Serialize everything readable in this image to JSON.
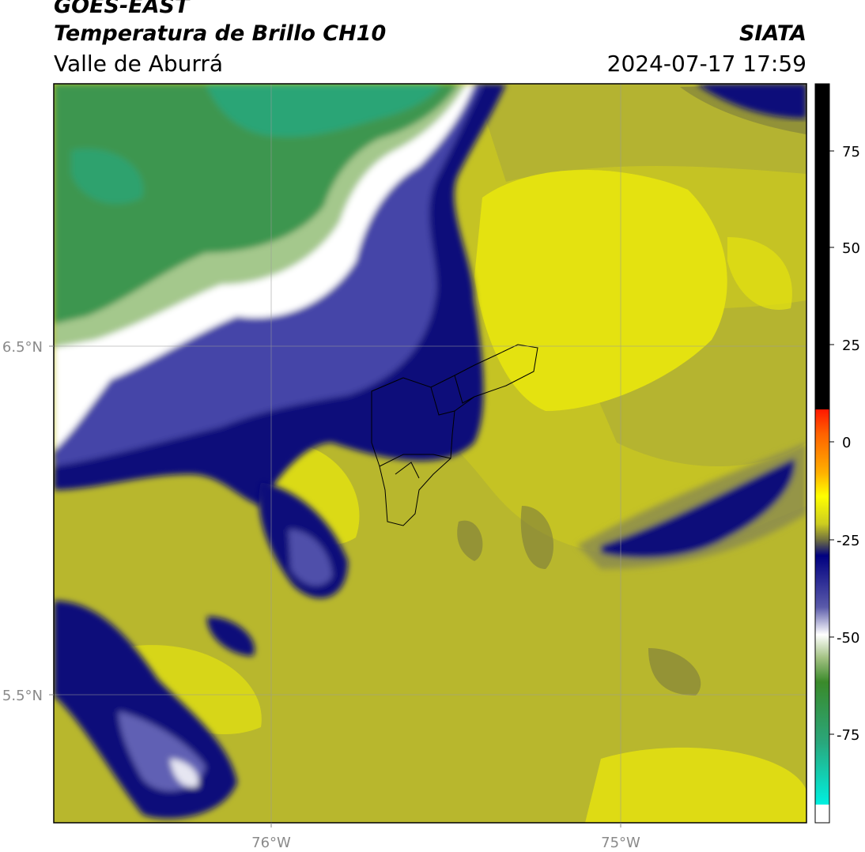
{
  "header": {
    "satellite": "GOES-EAST",
    "product": "Temperatura de Brillo CH10",
    "region": "Valle de Aburrá",
    "agency": "SIATA",
    "timestamp": "2024-07-17 17:59"
  },
  "map": {
    "lat_ticks": [
      "6.5°N",
      "5.5°N"
    ],
    "lon_ticks": [
      "76°W",
      "75°W"
    ],
    "feature_colors": {
      "warm_yellow": "#e2e010",
      "olive": "#a8a83a",
      "dark_olive": "#77773e",
      "navy": "#10107a",
      "blue_purple": "#4040a0",
      "white": "#ffffff",
      "light_green": "#a4c88c",
      "green": "#3c9650",
      "teal": "#2aa67a",
      "boundary": "#000000"
    }
  },
  "colorbar": {
    "ticks": [
      "75",
      "50",
      "25",
      "0",
      "-25",
      "-50",
      "-75"
    ],
    "colors": [
      "#000000",
      "#ff2000",
      "#ff8000",
      "#ffe000",
      "#e8ea00",
      "#707040",
      "#000080",
      "#4040a0",
      "#ffffff",
      "#408a28",
      "#2aa67a",
      "#00e0d8"
    ]
  }
}
